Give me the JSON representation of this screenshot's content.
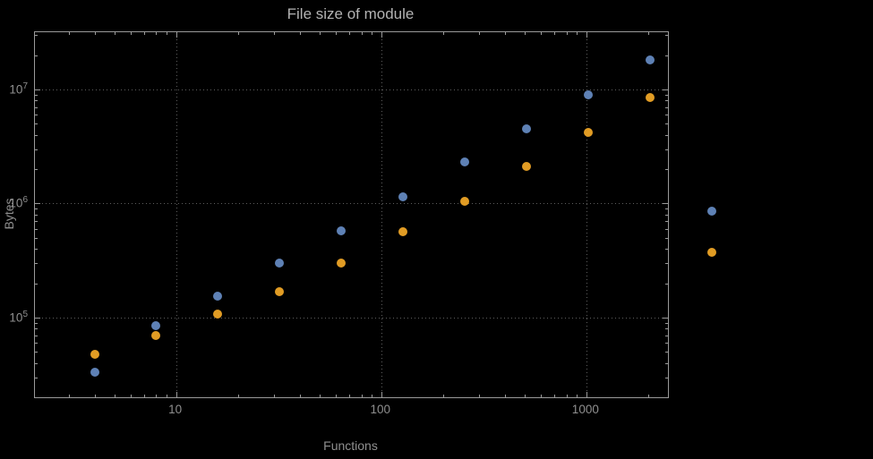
{
  "figure": {
    "title": "File size of module",
    "xlabel": "Functions",
    "ylabel": "Bytes"
  },
  "colors": {
    "background": "#000000",
    "frame": "#9a9a9a",
    "gridline": "#5e5e5e",
    "text": "#8f8f8f",
    "title": "#b3b3b3",
    "series_blue": "#5E81B5",
    "series_orange": "#E19C24"
  },
  "chart_data": {
    "type": "scatter",
    "title": "File size of module",
    "xlabel": "Functions",
    "ylabel": "Bytes",
    "x_scale": "log",
    "y_scale": "log",
    "xlim": [
      2.05,
      2500
    ],
    "ylim": [
      20000,
      31700000
    ],
    "grid": "dotted",
    "legend": "none",
    "x_gridlines": [
      10,
      100,
      1000
    ],
    "y_gridlines": [
      100000,
      1000000,
      10000000
    ],
    "x_ticks": [
      {
        "value": 10,
        "label": "10"
      },
      {
        "value": 100,
        "label": "100"
      },
      {
        "value": 1000,
        "label": "1000"
      }
    ],
    "y_ticks": [
      {
        "value": 100000,
        "base": "10",
        "exp": "5"
      },
      {
        "value": 1000000,
        "base": "10",
        "exp": "6"
      },
      {
        "value": 10000000,
        "base": "10",
        "exp": "7"
      }
    ],
    "series": [
      {
        "name": "blue-series",
        "color": "#5E81B5",
        "points": [
          [
            4,
            33000
          ],
          [
            8,
            85000
          ],
          [
            16,
            155000
          ],
          [
            32,
            300000
          ],
          [
            64,
            580000
          ],
          [
            128,
            1150000
          ],
          [
            256,
            2300000
          ],
          [
            512,
            4500000
          ],
          [
            1024,
            9000000
          ],
          [
            2048,
            18000000
          ],
          [
            4096,
            860000
          ]
        ]
      },
      {
        "name": "orange-series",
        "color": "#E19C24",
        "points": [
          [
            4,
            48000
          ],
          [
            8,
            70000
          ],
          [
            16,
            108000
          ],
          [
            32,
            170000
          ],
          [
            64,
            300000
          ],
          [
            128,
            560000
          ],
          [
            256,
            1050000
          ],
          [
            512,
            2100000
          ],
          [
            1024,
            4200000
          ],
          [
            2048,
            8500000
          ],
          [
            4096,
            370000
          ]
        ]
      }
    ]
  }
}
